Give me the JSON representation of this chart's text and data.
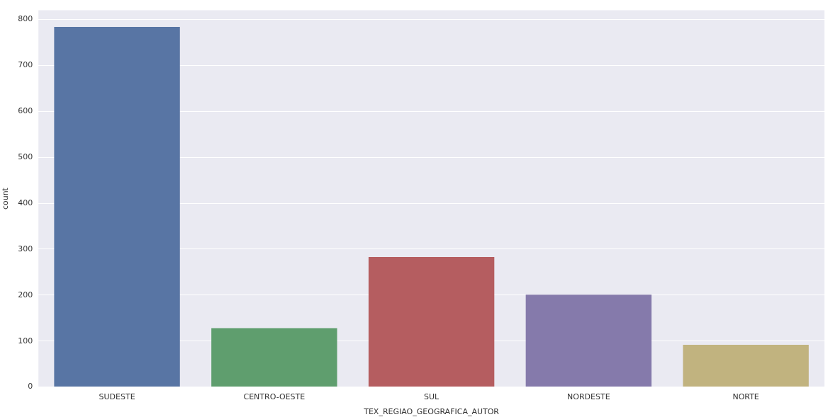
{
  "chart_data": {
    "type": "bar",
    "xlabel": "TEX_REGIAO_GEOGRAFICA_AUTOR",
    "ylabel": "count",
    "categories": [
      "SUDESTE",
      "CENTRO-OESTE",
      "SUL",
      "NORDESTE",
      "NORTE"
    ],
    "values": [
      784,
      128,
      283,
      201,
      92
    ],
    "colors": [
      "#5875a4",
      "#5f9e6e",
      "#b55d60",
      "#857aab",
      "#c1b37f"
    ],
    "ylim": [
      0,
      820
    ],
    "yticks": [
      0,
      100,
      200,
      300,
      400,
      500,
      600,
      700,
      800
    ],
    "grid": "y",
    "legend": false
  }
}
